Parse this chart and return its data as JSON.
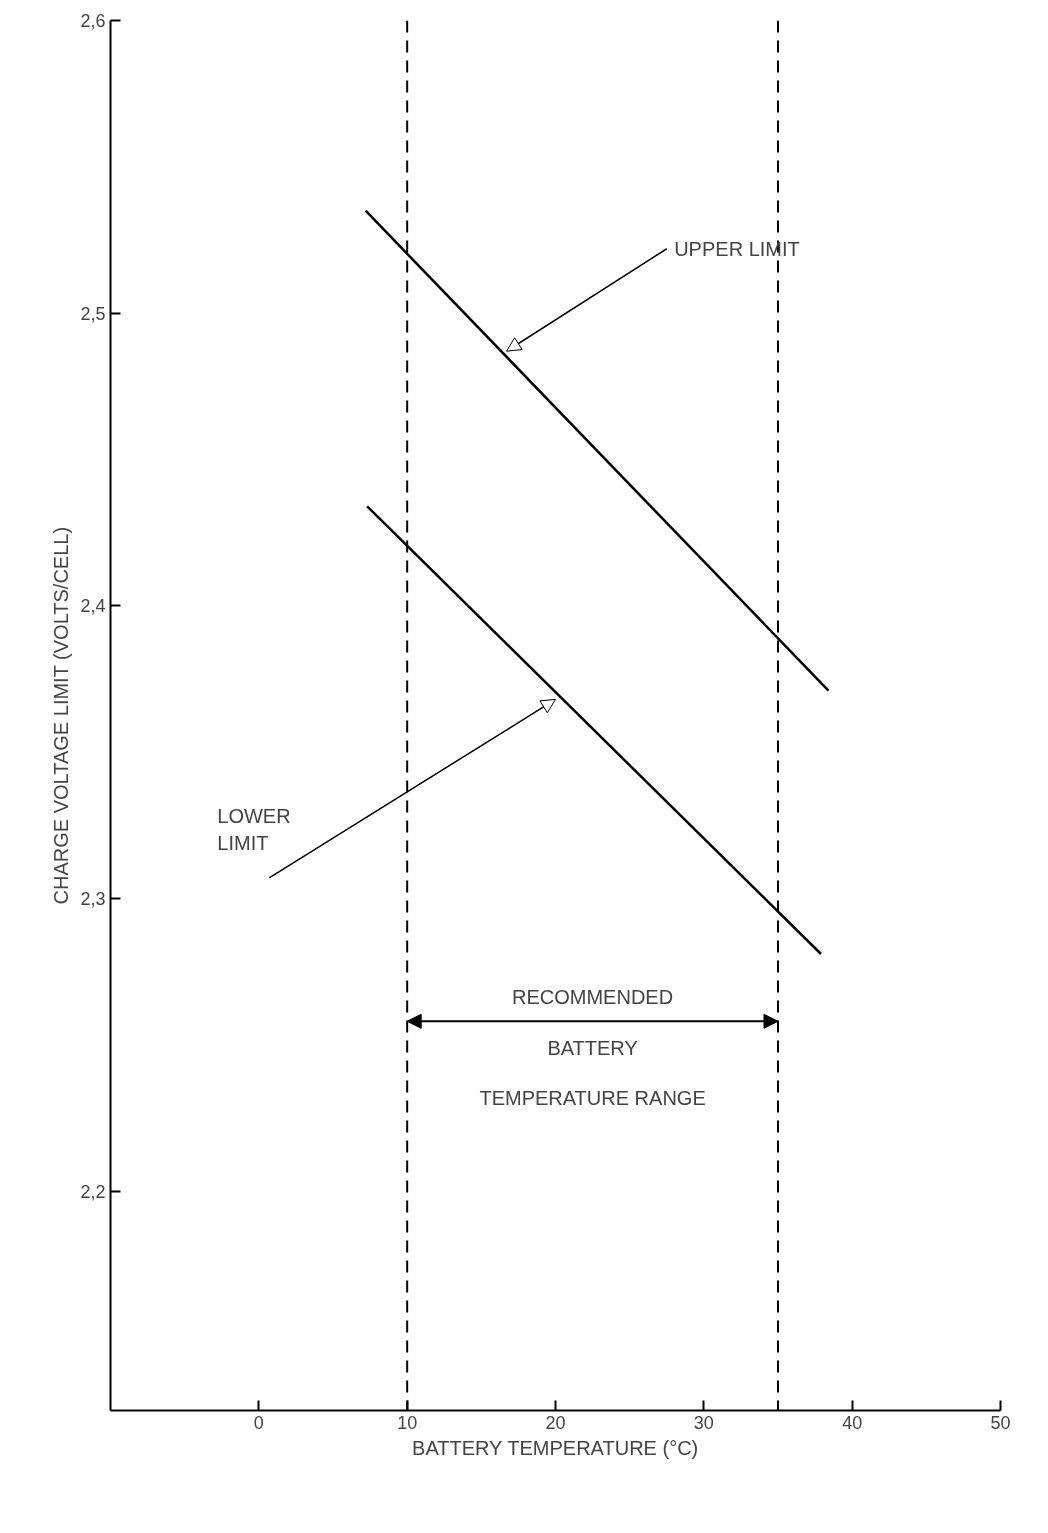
{
  "chart_data": {
    "type": "line",
    "xlabel": "BATTERY TEMPERATURE (°C)",
    "ylabel": "CHARGE VOLTAGE LIMIT (VOLTS/CELL)",
    "series": [
      {
        "color": "#000000",
        "x": [
          7.2,
          38.4
        ],
        "values": [
          2.535,
          2.371
        ]
      },
      {
        "color": "#000000",
        "x": [
          7.3,
          37.9
        ],
        "values": [
          2.434,
          2.281
        ]
      }
    ],
    "xlim": [
      -10,
      50
    ],
    "ylim": [
      2.125,
      2.6
    ],
    "xticks": [
      0,
      10,
      20,
      30,
      40,
      50
    ],
    "yticks": [
      {
        "value": 2.2,
        "label": "2,2"
      },
      {
        "value": 2.3,
        "label": "2,3"
      },
      {
        "value": 2.4,
        "label": "2,4"
      },
      {
        "value": 2.5,
        "label": "2,5"
      },
      {
        "value": 2.6,
        "label": "2,6"
      }
    ],
    "ref_lines": [
      {
        "axis": "x",
        "value": 10,
        "label": null,
        "line_style": "dashed"
      },
      {
        "axis": "x",
        "value": 35,
        "label": null,
        "line_style": "dashed"
      }
    ],
    "annotations": [
      {
        "text": "UPPER LIMIT",
        "x": 16.7,
        "y": 2.487
      },
      {
        "text": "LOWER\nLIMIT",
        "x": 20,
        "y": 2.368
      },
      "RECOMMENDED\nBATTERY\nTEMPERATURE RANGE"
    ],
    "grid": false,
    "marker": "none",
    "line_style": "solid"
  }
}
